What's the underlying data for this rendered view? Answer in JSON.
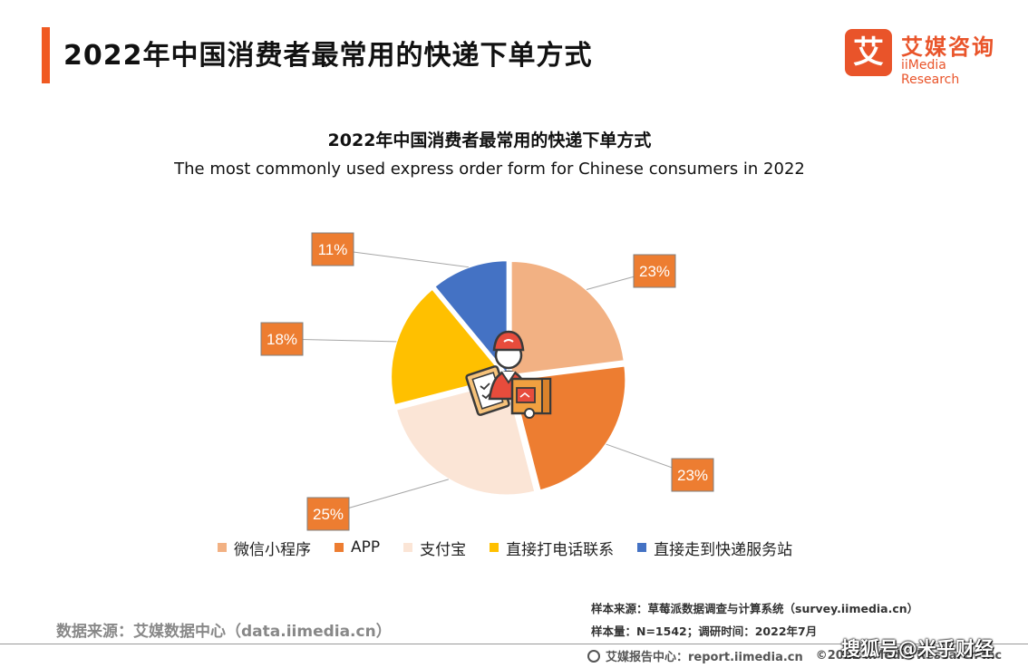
{
  "header": {
    "title": "2022年中国消费者最常用的快递下单方式",
    "logo_mark": "艾",
    "logo_cn": "艾媒咨询",
    "logo_en": "iiMedia Research"
  },
  "chart_data": {
    "type": "pie",
    "title": "2022年中国消费者最常用的快递下单方式",
    "subtitle": "The most commonly used express order form for Chinese consumers in 2022",
    "categories": [
      "微信小程序",
      "APP",
      "支付宝",
      "直接打电话联系",
      "直接走到快递服务站"
    ],
    "values": [
      23,
      23,
      25,
      18,
      11
    ],
    "labels": [
      "23%",
      "23%",
      "25%",
      "18%",
      "11%"
    ],
    "colors": [
      "#f2b183",
      "#ed7d31",
      "#fbe5d6",
      "#ffc000",
      "#4472c4"
    ],
    "label_color": "#ed7d31",
    "legend_position": "bottom"
  },
  "footer": {
    "source": "数据来源：艾媒数据中心（data.iimedia.cn）",
    "sample_source": "样本来源：草莓派数据调查与计算系统（survey.iimedia.cn）",
    "sample_size": "样本量：N=1542；调研时间：2022年7月",
    "report_center": "艾媒报告中心：report.iimedia.cn",
    "copyright": "©2022  iiMedia Research  Inc",
    "watermark": "搜狐号@米乎财经"
  }
}
